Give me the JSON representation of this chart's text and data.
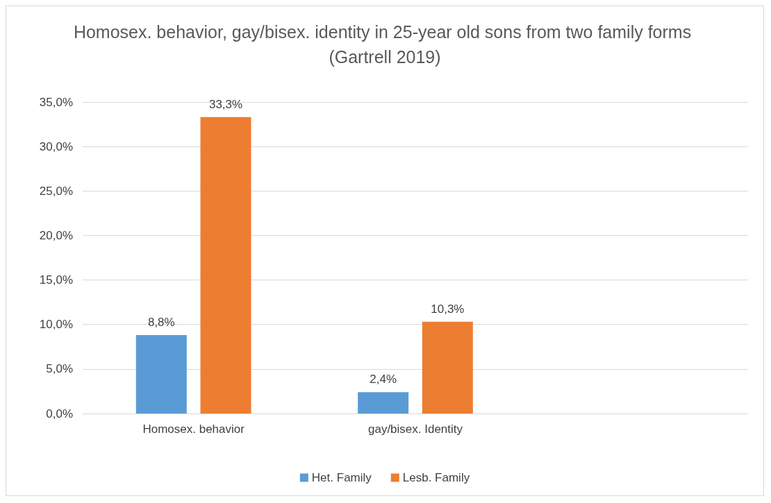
{
  "chart_data": {
    "type": "bar",
    "title": "Homosex. behavior, gay/bisex. identity in 25-year old sons from two family forms (Gartrell 2019)",
    "categories": [
      "Homosex. behavior",
      "gay/bisex. Identity",
      null
    ],
    "series": [
      {
        "name": "Het. Family",
        "color": "#5b9bd5",
        "values": [
          8.8,
          2.4,
          null
        ],
        "value_labels": [
          "8,8%",
          "2,4%",
          null
        ]
      },
      {
        "name": "Lesb. Family",
        "color": "#ed7d31",
        "values": [
          33.3,
          10.3,
          null
        ],
        "value_labels": [
          "33,3%",
          "10,3%",
          null
        ]
      }
    ],
    "ylim": [
      0,
      35
    ],
    "yticks": [
      {
        "value": 0,
        "label": "0,0%"
      },
      {
        "value": 5,
        "label": "5,0%"
      },
      {
        "value": 10,
        "label": "10,0%"
      },
      {
        "value": 15,
        "label": "15,0%"
      },
      {
        "value": 20,
        "label": "20,0%"
      },
      {
        "value": 25,
        "label": "25,0%"
      },
      {
        "value": 30,
        "label": "30,0%"
      },
      {
        "value": 35,
        "label": "35,0%"
      }
    ],
    "grid": "y",
    "legend": "bottom"
  }
}
